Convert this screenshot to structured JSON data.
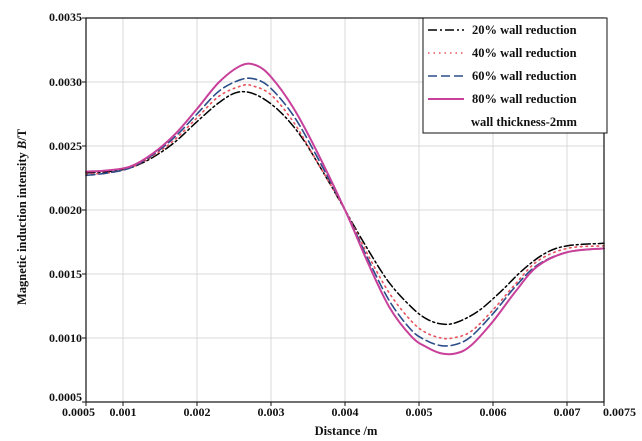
{
  "chart_data": {
    "type": "line",
    "title": "",
    "xlabel": "Distance /m",
    "ylabel": "Magnetic induction intensity ",
    "ylabel_italic": "B",
    "ylabel_unit": "/T",
    "xlim": [
      0.0005,
      0.0075
    ],
    "ylim": [
      0.0005,
      0.0035
    ],
    "x_ticks": [
      0.0005,
      0.001,
      0.002,
      0.003,
      0.004,
      0.005,
      0.006,
      0.007,
      0.0075
    ],
    "x_tick_labels": [
      "0.0005",
      "0.001",
      "0.002",
      "0.003",
      "0.004",
      "0.005",
      "0.006",
      "0.007",
      "0.0075"
    ],
    "y_ticks": [
      0.0005,
      0.001,
      0.0015,
      0.002,
      0.0025,
      0.003,
      0.0035
    ],
    "y_tick_labels": [
      "0.0005",
      "0.0010",
      "0.0015",
      "0.0020",
      "0.0025",
      "0.0030",
      "0.0035"
    ],
    "grid": true,
    "legend_position": "top-right",
    "legend_note": "wall thickness-2mm",
    "series": [
      {
        "name": "20% wall reduction",
        "color": "#000000",
        "dash": "9,3,2,3",
        "width": 1.5,
        "x": [
          0.0005,
          0.0008,
          0.0011,
          0.0014,
          0.0017,
          0.002,
          0.0023,
          0.00255,
          0.0028,
          0.0031,
          0.0034,
          0.0037,
          0.004,
          0.0043,
          0.0046,
          0.0049,
          0.0051,
          0.0053,
          0.0055,
          0.0058,
          0.0061,
          0.0064,
          0.0067,
          0.007,
          0.0075
        ],
        "y": [
          0.00229,
          0.0023,
          0.00233,
          0.00241,
          0.00253,
          0.00269,
          0.00284,
          0.00292,
          0.0029,
          0.00278,
          0.00258,
          0.0023,
          0.002,
          0.0017,
          0.00143,
          0.00124,
          0.00115,
          0.00111,
          0.00112,
          0.00121,
          0.00136,
          0.00153,
          0.00166,
          0.00172,
          0.00174
        ]
      },
      {
        "name": "40% wall reduction",
        "color": "#e8505b",
        "dash": "1.5,4",
        "width": 1.6,
        "x": [
          0.0005,
          0.0008,
          0.0011,
          0.0014,
          0.0017,
          0.002,
          0.0023,
          0.0026,
          0.00275,
          0.003,
          0.0033,
          0.0036,
          0.004,
          0.0043,
          0.0046,
          0.0049,
          0.0051,
          0.0053,
          0.00545,
          0.0057,
          0.006,
          0.0063,
          0.0066,
          0.007,
          0.0075
        ],
        "y": [
          0.00228,
          0.00229,
          0.00233,
          0.00242,
          0.00255,
          0.00272,
          0.00289,
          0.00297,
          0.00297,
          0.0029,
          0.00269,
          0.0024,
          0.002,
          0.00166,
          0.00135,
          0.00113,
          0.00104,
          0.001,
          0.001,
          0.00105,
          0.00122,
          0.00142,
          0.0016,
          0.0017,
          0.00172
        ]
      },
      {
        "name": "60% wall reduction",
        "color": "#2b4d8a",
        "dash": "9,4",
        "width": 1.6,
        "x": [
          0.0005,
          0.0008,
          0.0011,
          0.0014,
          0.0017,
          0.002,
          0.0023,
          0.0026,
          0.0028,
          0.003,
          0.0033,
          0.0036,
          0.004,
          0.0043,
          0.0046,
          0.0049,
          0.0051,
          0.0053,
          0.0055,
          0.0057,
          0.006,
          0.0063,
          0.0066,
          0.007,
          0.0075
        ],
        "y": [
          0.00227,
          0.00229,
          0.00233,
          0.00243,
          0.00257,
          0.00275,
          0.00293,
          0.00302,
          0.00302,
          0.00295,
          0.00274,
          0.00244,
          0.002,
          0.00163,
          0.00129,
          0.00106,
          0.00098,
          0.00094,
          0.00095,
          0.00101,
          0.00119,
          0.0014,
          0.00157,
          0.00167,
          0.0017
        ]
      },
      {
        "name": "80% wall reduction",
        "color": "#c8409a",
        "dash": "",
        "width": 2.0,
        "x": [
          0.0005,
          0.0008,
          0.0011,
          0.0014,
          0.0017,
          0.002,
          0.0023,
          0.0026,
          0.0028,
          0.003,
          0.0033,
          0.0036,
          0.004,
          0.0043,
          0.0046,
          0.0049,
          0.0051,
          0.0053,
          0.0055,
          0.0057,
          0.006,
          0.0063,
          0.0066,
          0.007,
          0.0075
        ],
        "y": [
          0.0023,
          0.00231,
          0.00234,
          0.00244,
          0.00259,
          0.00279,
          0.003,
          0.00313,
          0.00313,
          0.00304,
          0.0028,
          0.00248,
          0.002,
          0.0016,
          0.00124,
          0.00101,
          0.00093,
          0.00088,
          0.00088,
          0.00094,
          0.00113,
          0.00136,
          0.00156,
          0.00167,
          0.0017
        ]
      }
    ]
  }
}
